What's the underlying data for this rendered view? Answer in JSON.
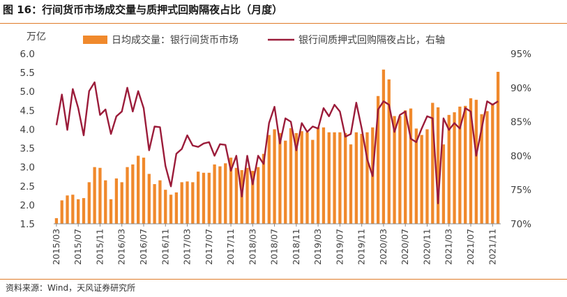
{
  "figure": {
    "title": "图 16：行间货币市场成交量与质押式回购隔夜占比（月度）",
    "source": "资料来源：Wind，天风证券研究所"
  },
  "colors": {
    "bars": "#f0892c",
    "line": "#9b1c3a",
    "rule": "#e07b28",
    "text": "#404040"
  },
  "chart_data": {
    "type": "bar",
    "categories": [
      "2015/03",
      "2015/04",
      "2015/05",
      "2015/06",
      "2015/07",
      "2015/08",
      "2015/09",
      "2015/10",
      "2015/11",
      "2015/12",
      "2016/01",
      "2016/02",
      "2016/03",
      "2016/04",
      "2016/05",
      "2016/06",
      "2016/07",
      "2016/08",
      "2016/09",
      "2016/10",
      "2016/11",
      "2016/12",
      "2017/01",
      "2017/02",
      "2017/03",
      "2017/04",
      "2017/05",
      "2017/06",
      "2017/07",
      "2017/08",
      "2017/09",
      "2017/10",
      "2017/11",
      "2017/12",
      "2018/01",
      "2018/02",
      "2018/03",
      "2018/04",
      "2018/05",
      "2018/06",
      "2018/07",
      "2018/08",
      "2018/09",
      "2018/10",
      "2018/11",
      "2018/12",
      "2019/01",
      "2019/02",
      "2019/03",
      "2019/04",
      "2019/05",
      "2019/06",
      "2019/07",
      "2019/08",
      "2019/09",
      "2019/10",
      "2019/11",
      "2019/12",
      "2020/01",
      "2020/02",
      "2020/03",
      "2020/04",
      "2020/05",
      "2020/06",
      "2020/07",
      "2020/08",
      "2020/09",
      "2020/10",
      "2020/11",
      "2020/12",
      "2021/01",
      "2021/02",
      "2021/03",
      "2021/04",
      "2021/05",
      "2021/06",
      "2021/07",
      "2021/08",
      "2021/09",
      "2021/10",
      "2021/11",
      "2021/12"
    ],
    "x_tick_labels": [
      "2015/03",
      "2015/07",
      "2015/11",
      "2016/03",
      "2016/07",
      "2016/11",
      "2017/03",
      "2017/07",
      "2017/11",
      "2018/03",
      "2018/07",
      "2018/11",
      "2019/03",
      "2019/07",
      "2019/11",
      "2020/03",
      "2020/07",
      "2020/11",
      "2021/03",
      "2021/07",
      "2021/11"
    ],
    "left_axis": {
      "unit": "万亿",
      "ylim": [
        1.5,
        6.0
      ],
      "ticks": [
        "1.5",
        "2.0",
        "2.5",
        "3.0",
        "3.5",
        "4.0",
        "4.5",
        "5.0",
        "5.5",
        "6.0"
      ]
    },
    "right_axis": {
      "ylim": [
        70,
        95
      ],
      "ticks": [
        "70%",
        "75%",
        "80%",
        "85%",
        "90%",
        "95%"
      ]
    },
    "series": [
      {
        "name": "日均成交量：银行间货币市场",
        "type": "bar",
        "axis": "left",
        "values": [
          1.65,
          2.12,
          2.25,
          2.27,
          2.15,
          2.18,
          2.6,
          3.0,
          2.98,
          2.65,
          2.15,
          2.7,
          2.6,
          3.0,
          3.07,
          3.3,
          3.25,
          2.82,
          2.55,
          2.65,
          2.4,
          2.27,
          2.33,
          2.6,
          2.62,
          2.6,
          2.88,
          2.85,
          2.85,
          3.07,
          3.02,
          3.1,
          3.25,
          2.98,
          2.92,
          2.98,
          2.9,
          3.0,
          3.35,
          3.85,
          4.0,
          3.9,
          3.7,
          4.03,
          3.9,
          3.95,
          3.92,
          3.72,
          4.05,
          4.05,
          3.92,
          3.92,
          3.92,
          3.9,
          3.6,
          3.92,
          3.88,
          3.92,
          4.05,
          4.88,
          5.58,
          5.32,
          4.35,
          4.35,
          4.5,
          4.55,
          4.02,
          3.85,
          4.0,
          4.7,
          4.58,
          3.6,
          4.38,
          4.45,
          4.6,
          4.62,
          4.82,
          4.78,
          4.4,
          4.48,
          4.68,
          5.52
        ]
      },
      {
        "name": "银行间质押式回购隔夜占比，右轴",
        "type": "line",
        "axis": "right",
        "values": [
          84.5,
          89.0,
          83.8,
          89.8,
          87.0,
          83.0,
          89.5,
          90.8,
          86.0,
          86.8,
          83.2,
          85.8,
          86.5,
          90.0,
          86.5,
          89.5,
          87.0,
          80.8,
          84.3,
          84.2,
          78.5,
          75.5,
          80.3,
          81.0,
          83.0,
          81.5,
          81.3,
          81.8,
          82.0,
          80.0,
          81.7,
          81.6,
          77.8,
          80.0,
          74.0,
          80.0,
          75.8,
          80.0,
          78.8,
          84.8,
          87.2,
          81.8,
          85.5,
          85.0,
          80.8,
          84.8,
          83.5,
          84.3,
          84.0,
          87.0,
          85.8,
          87.5,
          86.5,
          82.8,
          83.2,
          87.8,
          84.0,
          79.5,
          77.0,
          86.8,
          88.0,
          87.5,
          83.5,
          86.0,
          86.5,
          82.5,
          82.0,
          84.0,
          85.8,
          85.5,
          73.0,
          85.5,
          83.8,
          84.8,
          84.0,
          87.0,
          86.5,
          80.0,
          84.0,
          88.0,
          87.5,
          88.0
        ]
      }
    ],
    "legend": "top"
  }
}
